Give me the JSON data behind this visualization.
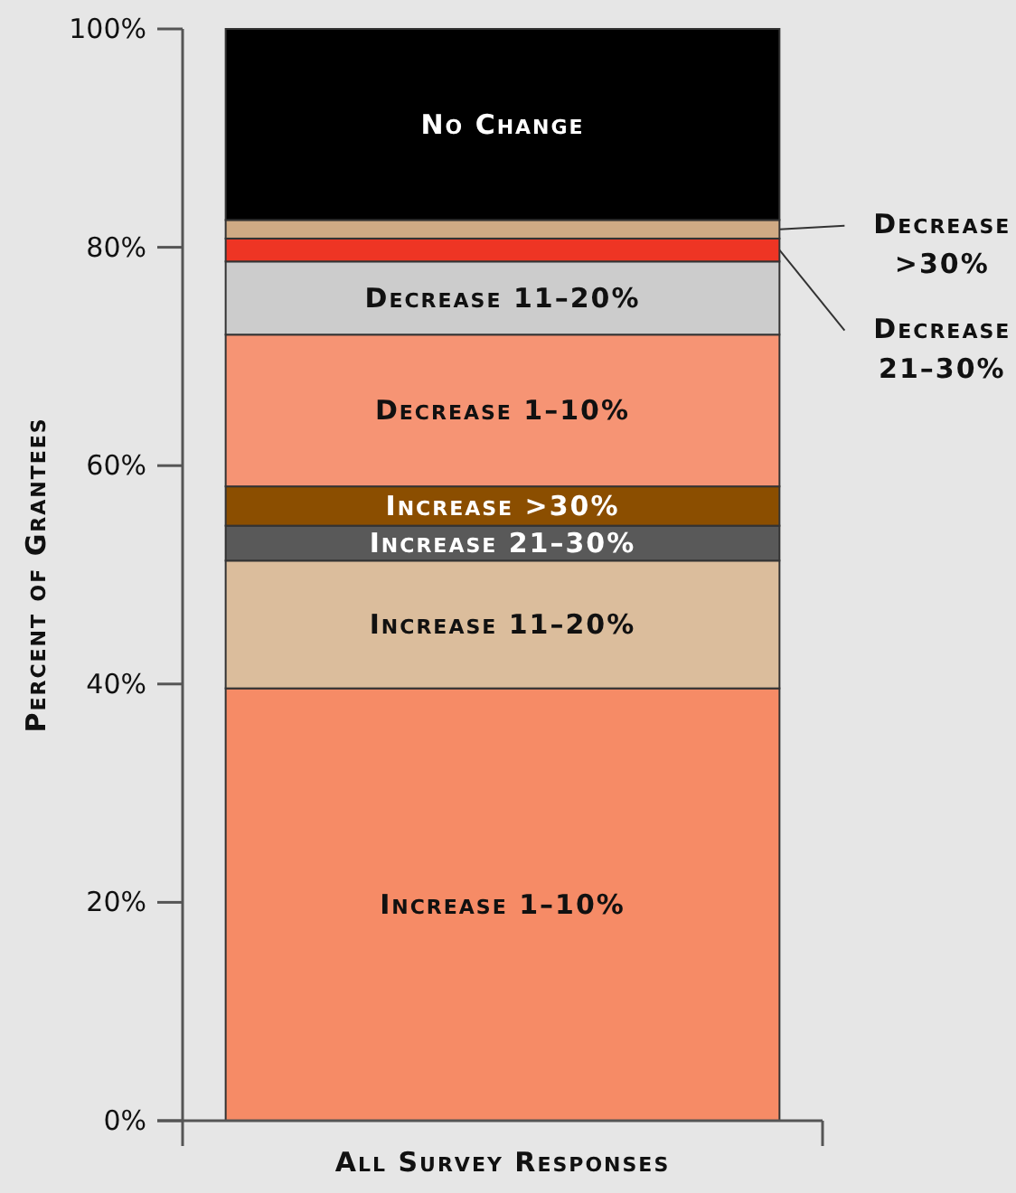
{
  "chart_data": {
    "type": "bar",
    "stacked": true,
    "ylabel": "Percent of Grantees",
    "categories": [
      "All Survey Responses"
    ],
    "series": [
      {
        "name": "Increase 1–10%",
        "color": "#f68b66",
        "values": [
          39.6
        ]
      },
      {
        "name": "Increase 11–20%",
        "color": "#dbbd9c",
        "values": [
          11.7
        ]
      },
      {
        "name": "Increase 21–30%",
        "color": "#595959",
        "values": [
          3.2
        ]
      },
      {
        "name": "Increase >30%",
        "color": "#8b4e00",
        "values": [
          3.6
        ]
      },
      {
        "name": "Decrease 1–10%",
        "color": "#f69474",
        "values": [
          13.9
        ]
      },
      {
        "name": "Decrease 11–20%",
        "color": "#cccccc",
        "values": [
          6.7
        ]
      },
      {
        "name": "Decrease 21–30%",
        "color": "#ee3524",
        "values": [
          2.1
        ]
      },
      {
        "name": "Decrease >30%",
        "color": "#cfaa84",
        "values": [
          1.7
        ]
      },
      {
        "name": "No Change",
        "color": "#000000",
        "values": [
          17.5
        ]
      }
    ],
    "ylim": [
      0,
      100
    ],
    "yticks": [
      {
        "value": 0,
        "label": "0%"
      },
      {
        "value": 20,
        "label": "20%"
      },
      {
        "value": 40,
        "label": "40%"
      },
      {
        "value": 60,
        "label": "60%"
      },
      {
        "value": 80,
        "label": "80%"
      },
      {
        "value": 100,
        "label": "100%"
      }
    ],
    "grid": false
  }
}
